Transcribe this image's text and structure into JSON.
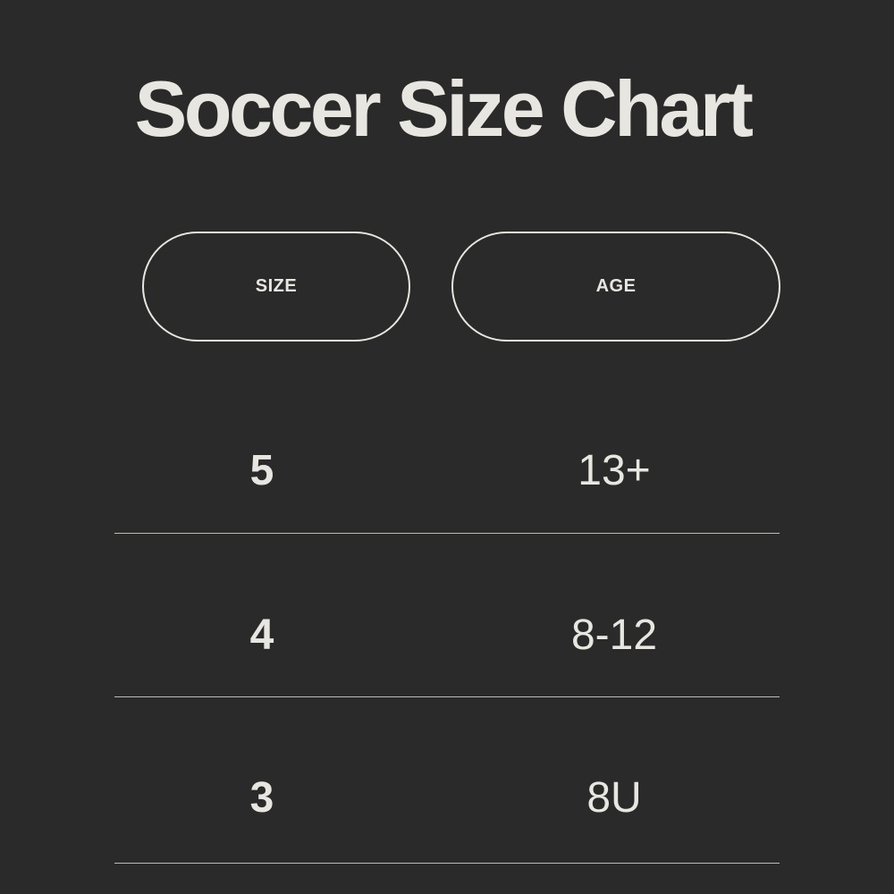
{
  "title": "Soccer Size Chart",
  "headers": {
    "size": "SIZE",
    "age": "AGE"
  },
  "rows": [
    {
      "size": "5",
      "age": "13+"
    },
    {
      "size": "4",
      "age": "8-12"
    },
    {
      "size": "3",
      "age": "8U"
    }
  ],
  "colors": {
    "background": "#2a2a2a",
    "text": "#e8e6e0"
  }
}
